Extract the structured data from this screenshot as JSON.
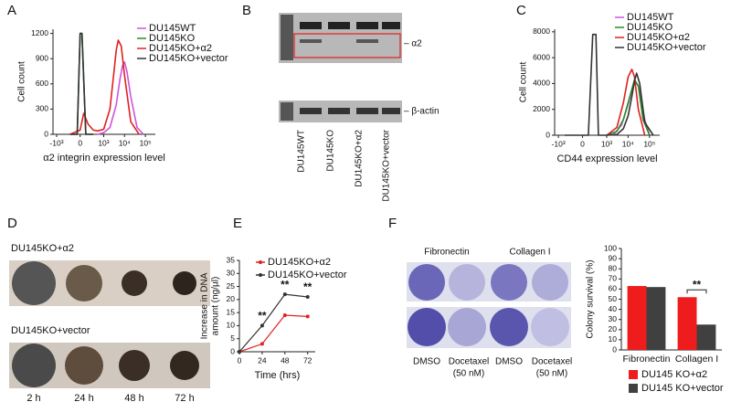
{
  "panel_labels": [
    "A",
    "B",
    "C",
    "D",
    "E",
    "F"
  ],
  "blot": {
    "lanes": [
      "DU145WT",
      "DU145KO",
      "DU145KO+α2",
      "DU145KO+vector"
    ],
    "bands": [
      "– α2",
      "– β-actin"
    ]
  },
  "spheroids": {
    "rows": [
      "DU145KO+α2",
      "DU145KO+vector"
    ],
    "times": [
      "2 h",
      "24 h",
      "48 h",
      "72 h"
    ]
  },
  "colony_photos": {
    "coatings": [
      "Fibronectin",
      "Collagen I"
    ],
    "treatments": [
      [
        "DMSO"
      ],
      [
        "Docetaxel",
        "(50 nM)"
      ],
      [
        "DMSO"
      ],
      [
        "Docetaxel",
        "(50 nM)"
      ]
    ]
  },
  "chart_data": [
    {
      "type": "flow",
      "ylabel": "Cell count",
      "xlabel": "α2 integrin expression level",
      "xscale": "biexponential",
      "xlim": [
        -1500,
        300000
      ],
      "ylim": [
        0,
        1250
      ],
      "xticks": [
        {
          "value": -1000,
          "label": "-10³"
        },
        0,
        {
          "value": 1000,
          "label": "10³"
        },
        {
          "value": 10000,
          "label": "10⁴"
        },
        {
          "value": 100000,
          "label": "10⁵"
        }
      ],
      "yticks": [
        0,
        300,
        600,
        900,
        1200
      ],
      "series": [
        {
          "name": "DU145WT",
          "color": "#cc55dd",
          "x": [
            500,
            1000,
            2000,
            4000,
            6000,
            8000,
            10000,
            13000,
            20000,
            40000,
            80000
          ],
          "values": [
            0,
            20,
            80,
            350,
            650,
            820,
            860,
            750,
            450,
            80,
            0
          ]
        },
        {
          "name": "DU145KO",
          "color": "#2a8a2a",
          "x": [
            -200,
            -50,
            0,
            30,
            100,
            300
          ],
          "values": [
            0,
            0,
            1200,
            1200,
            0,
            0
          ]
        },
        {
          "name": "DU145KO+α2",
          "color": "#e02020",
          "x": [
            -200,
            0,
            60,
            150,
            300,
            500,
            1000,
            2000,
            3000,
            4000,
            5000,
            7000,
            10000,
            20000,
            50000
          ],
          "values": [
            0,
            50,
            250,
            120,
            50,
            40,
            60,
            300,
            700,
            1000,
            1120,
            1050,
            700,
            150,
            0
          ]
        },
        {
          "name": "DU145KO+vector",
          "color": "#333333",
          "x": [
            -200,
            -50,
            0,
            30,
            100,
            300
          ],
          "values": [
            0,
            0,
            1200,
            1200,
            0,
            0
          ]
        }
      ]
    },
    {
      "type": "flow",
      "ylabel": "Cell count",
      "xlabel": "CD44 expression level",
      "xscale": "biexponential",
      "xlim": [
        -1500,
        300000
      ],
      "ylim": [
        0,
        8200
      ],
      "xticks": [
        {
          "value": -1000,
          "label": "-10³"
        },
        0,
        {
          "value": 1000,
          "label": "10³"
        },
        {
          "value": 10000,
          "label": "10⁴"
        },
        {
          "value": 100000,
          "label": "10⁵"
        }
      ],
      "yticks": [
        0,
        2000,
        4000,
        6000,
        8000
      ],
      "series": [
        {
          "name": "DU145WT",
          "color": "#cc55dd",
          "x": [
            2000,
            5000,
            10000,
            20000,
            30000,
            60000,
            100000
          ],
          "values": [
            0,
            800,
            2400,
            4200,
            3800,
            1200,
            0
          ]
        },
        {
          "name": "DU145KO",
          "color": "#2a8a2a",
          "x": [
            1000,
            3000,
            6000,
            10000,
            20000,
            30000,
            50000,
            100000
          ],
          "values": [
            0,
            300,
            1200,
            2500,
            4300,
            3800,
            1200,
            0
          ]
        },
        {
          "name": "DU145KO+α2",
          "color": "#e02020",
          "x": [
            1000,
            3000,
            6000,
            10000,
            15000,
            20000,
            30000,
            60000
          ],
          "values": [
            0,
            600,
            2500,
            4500,
            5100,
            4500,
            2000,
            0
          ]
        },
        {
          "name": "DU145KO+vector",
          "color": "#333333",
          "x": [
            -500,
            100,
            200,
            300,
            400,
            600,
            1000,
            3000,
            6000,
            10000,
            15000,
            20000,
            25000,
            35000,
            60000,
            150000
          ],
          "values": [
            0,
            0,
            7800,
            7800,
            0,
            0,
            0,
            50,
            500,
            1500,
            3000,
            4200,
            4800,
            4000,
            1000,
            0
          ]
        }
      ]
    },
    {
      "type": "line",
      "ylabel": [
        "Increase in DNA",
        "amount (ng/µl)"
      ],
      "xlabel": "Time (hrs)",
      "x": [
        0,
        24,
        48,
        72
      ],
      "xlim": [
        0,
        80
      ],
      "xticks": [
        0,
        24,
        48,
        72
      ],
      "ylim": [
        0,
        35
      ],
      "yticks": [
        0,
        5,
        10,
        15,
        20,
        25,
        30,
        35
      ],
      "annotations": [
        "**",
        "**",
        "**"
      ],
      "series": [
        {
          "name": "DU145KO+α2",
          "color": "#e02020",
          "values": [
            0,
            3,
            14,
            13.5
          ]
        },
        {
          "name": "DU145KO+vector",
          "color": "#333333",
          "values": [
            0,
            10,
            22,
            21
          ]
        }
      ]
    },
    {
      "type": "bar",
      "ylabel": "Colony survival (%)",
      "categories": [
        "Fibronectin",
        "Collagen I"
      ],
      "ylim": [
        0,
        100
      ],
      "yticks": [
        0,
        10,
        20,
        30,
        40,
        50,
        60,
        70,
        80,
        90,
        100
      ],
      "annotation": "**",
      "series": [
        {
          "name": "DU145 KO+α2",
          "color": "#ee1c1c",
          "values": [
            63,
            52
          ]
        },
        {
          "name": "DU145 KO+vector",
          "color": "#404040",
          "values": [
            62,
            25
          ]
        }
      ]
    }
  ]
}
